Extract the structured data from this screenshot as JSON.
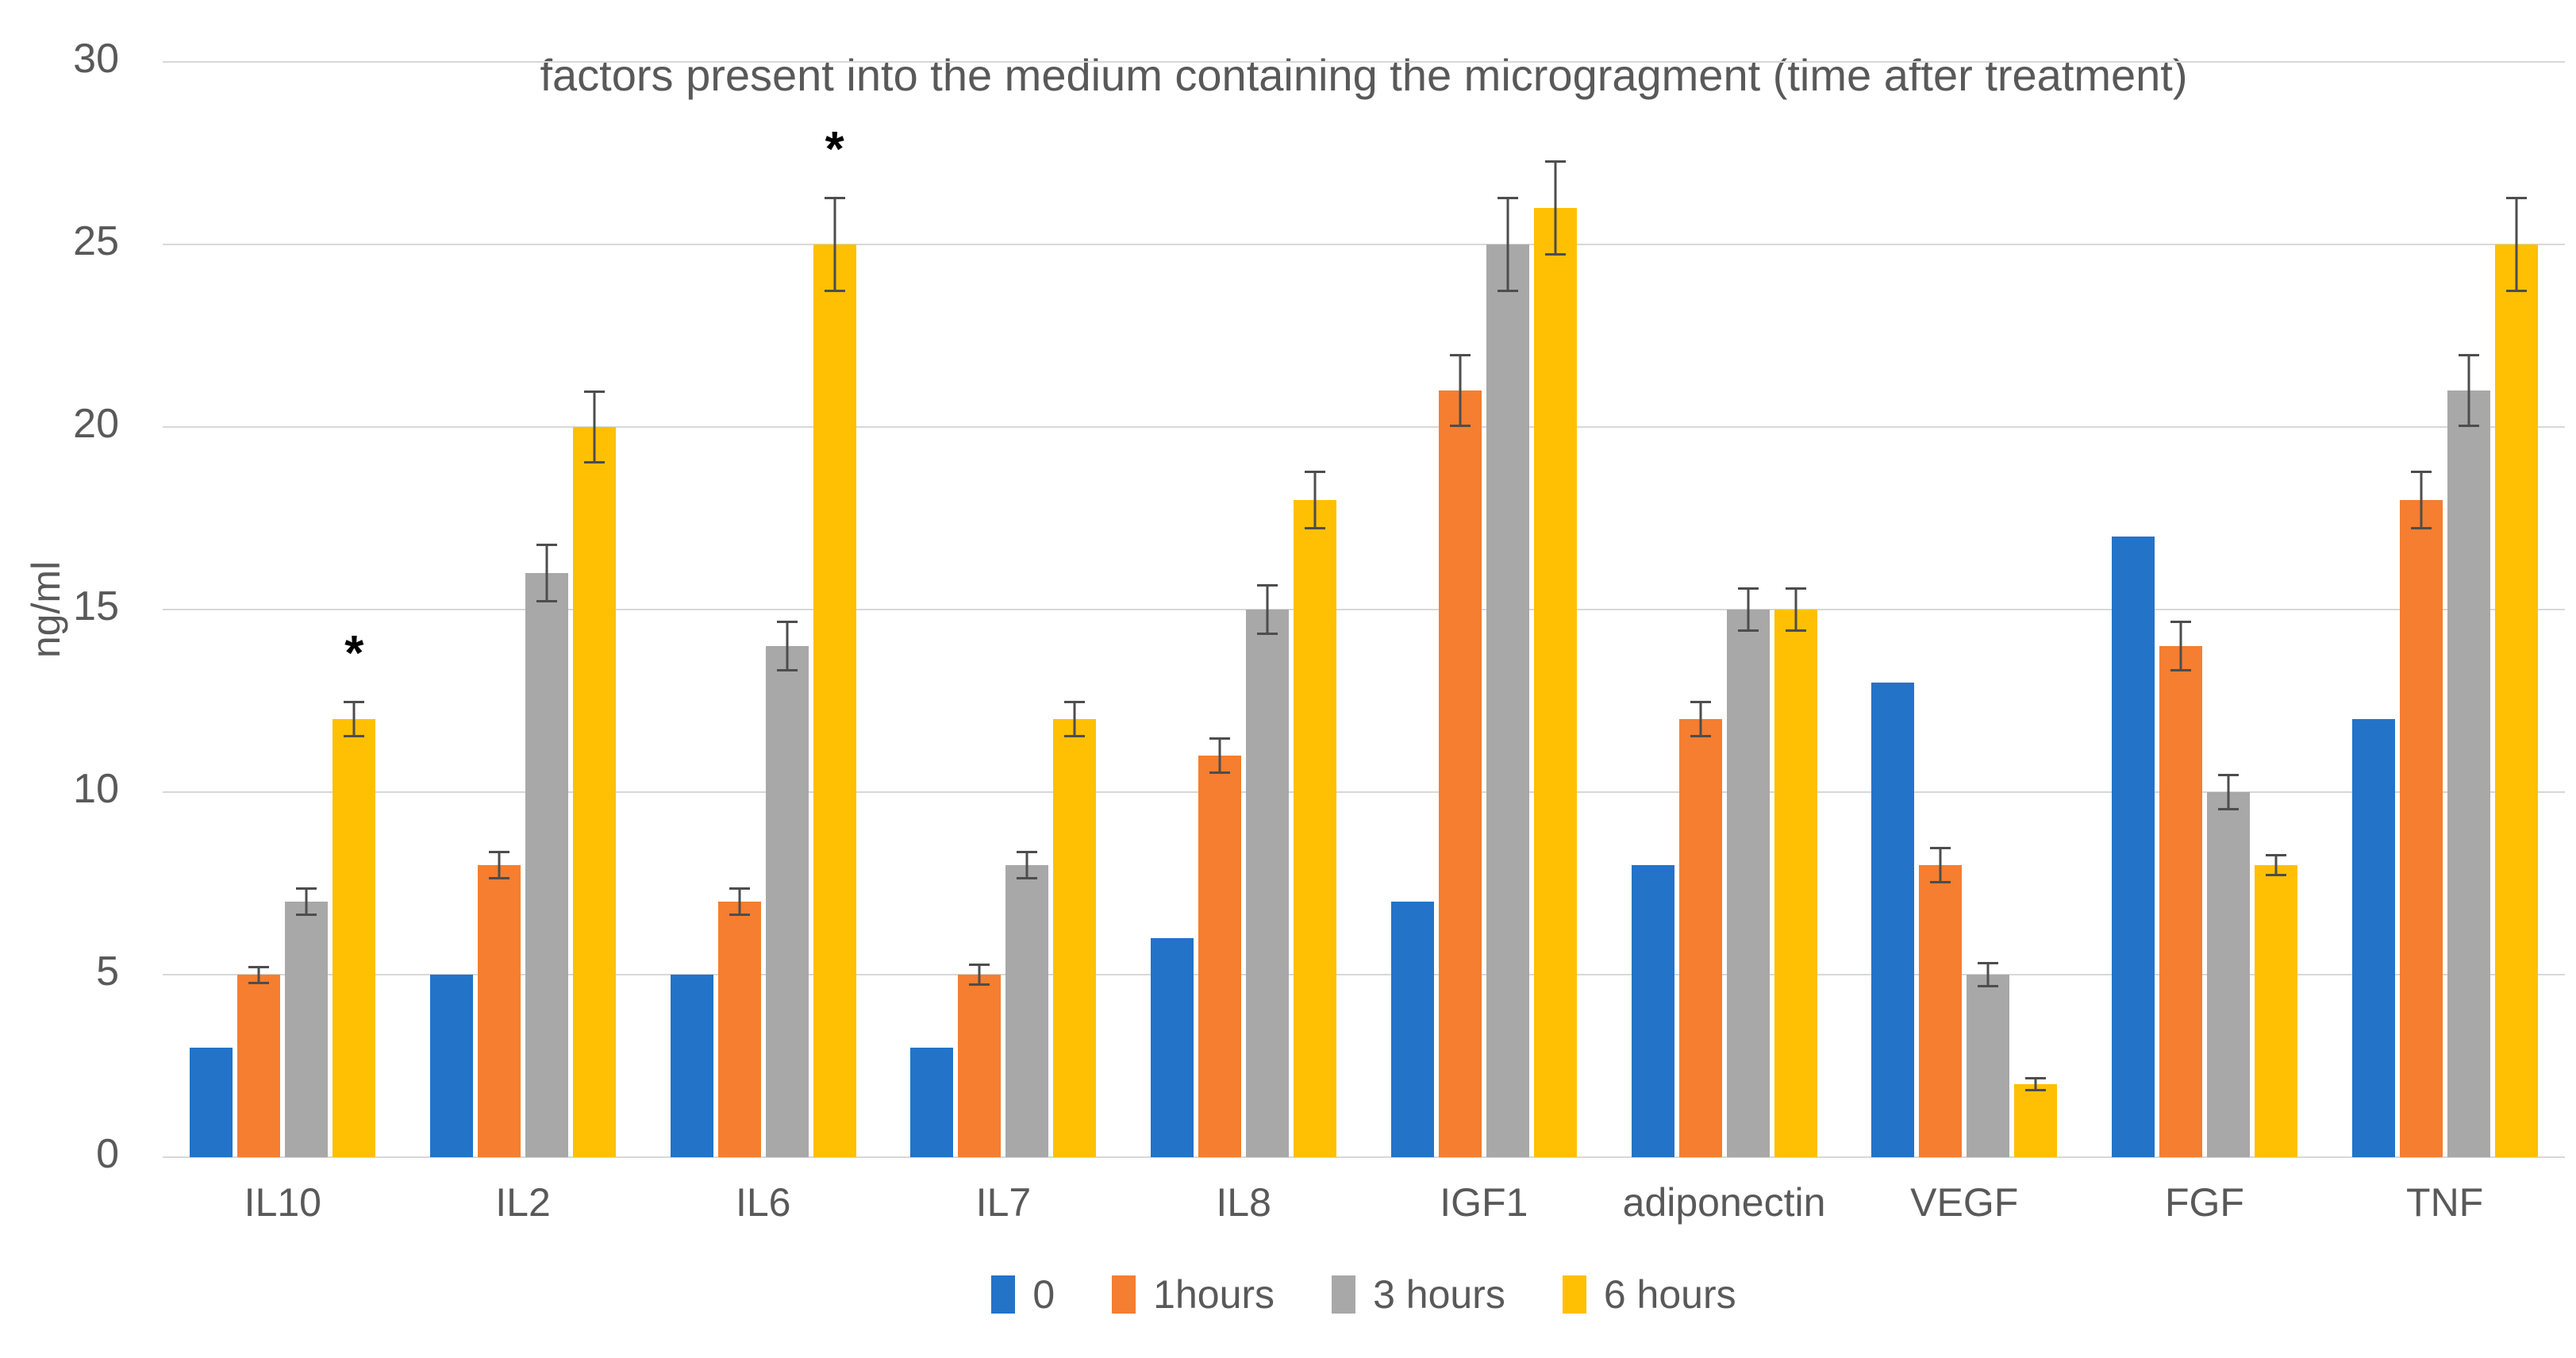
{
  "chart_data": {
    "type": "bar",
    "title": "factors present into the medium containing the microgragment (time after treatment)",
    "ylabel": "ng/ml",
    "xlabel": "",
    "ylim": [
      0,
      30
    ],
    "yticks": [
      0,
      5,
      10,
      15,
      20,
      25,
      30
    ],
    "grid": true,
    "legend_position": "bottom",
    "categories": [
      "IL10",
      "IL2",
      "IL6",
      "IL7",
      "IL8",
      "IGF1",
      "adiponectin",
      "VEGF",
      "FGF",
      "TNF"
    ],
    "series": [
      {
        "name": "0",
        "color": "#2373c9",
        "values": [
          3,
          5,
          5,
          3,
          6,
          7,
          8,
          13,
          17,
          12
        ],
        "errors": [
          0,
          0,
          0,
          0,
          0,
          0,
          0,
          0,
          0,
          0
        ]
      },
      {
        "name": "1hours",
        "color": "#f57e30",
        "values": [
          5,
          8,
          7,
          5,
          11,
          21,
          12,
          8,
          14,
          18
        ],
        "errors": [
          0.25,
          0.4,
          0.4,
          0.3,
          0.5,
          1.0,
          0.5,
          0.5,
          0.7,
          0.8
        ]
      },
      {
        "name": "3 hours",
        "color": "#a8a8a8",
        "values": [
          7,
          16,
          14,
          8,
          15,
          25,
          15,
          5,
          10,
          21
        ],
        "errors": [
          0.4,
          0.8,
          0.7,
          0.4,
          0.7,
          1.3,
          0.6,
          0.35,
          0.5,
          1.0
        ]
      },
      {
        "name": "6 hours",
        "color": "#ffc003",
        "values": [
          12,
          20,
          25,
          12,
          18,
          26,
          15,
          2,
          8,
          25
        ],
        "errors": [
          0.5,
          1.0,
          1.3,
          0.5,
          0.8,
          1.3,
          0.6,
          0.2,
          0.3,
          1.3
        ]
      }
    ],
    "annotations": [
      {
        "category": "IL10",
        "series_index": 3,
        "text": "*"
      },
      {
        "category": "IL6",
        "series_index": 3,
        "text": "*"
      }
    ],
    "text_color": "#595959",
    "gridline_color": "#d8d8d8",
    "errorbar_color": "#4d4d4d"
  }
}
